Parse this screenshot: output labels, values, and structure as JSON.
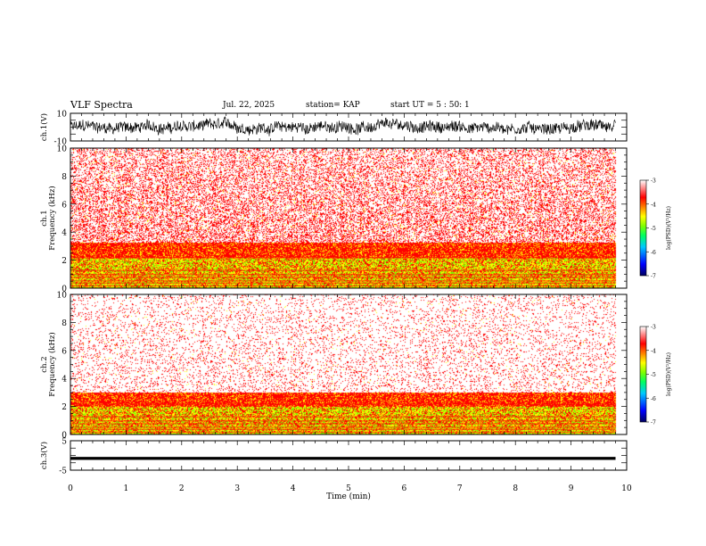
{
  "header": {
    "title": "VLF Spectra",
    "date": "Jul. 22, 2025",
    "station": "station= KAP",
    "start": "start UT =  5 : 50: 1"
  },
  "chart_data": {
    "type": "heatmap",
    "title": "VLF Spectra",
    "xlabel": "Time  (min)",
    "x_ticks": [
      "0",
      "1",
      "2",
      "3",
      "4",
      "5",
      "6",
      "7",
      "8",
      "9",
      "10"
    ],
    "xlim": [
      0,
      10
    ],
    "panels": [
      {
        "kind": "waveform",
        "ylabel": "ch.1(V)",
        "ylim": [
          -10,
          10
        ],
        "y_ticks": [
          "10",
          "-10"
        ],
        "trace_span": [
          0,
          9.8
        ]
      },
      {
        "kind": "spectrogram",
        "ylabel_top": "ch.1",
        "ylabel": "Frequency  (kHz)",
        "ylim": [
          0,
          10
        ],
        "y_ticks": [
          "0",
          "2",
          "4",
          "6",
          "8",
          "10"
        ],
        "colorbar": {
          "label": "log(PSD)(V²/Hz)",
          "range": [
            -7,
            -3
          ],
          "ticks": [
            "-3",
            "-4",
            "-5",
            "-6",
            "-7"
          ],
          "colormap": [
            "#000060",
            "#0000ff",
            "#00c8ff",
            "#00ff60",
            "#80ff00",
            "#ffff00",
            "#ff8000",
            "#ff0000",
            "#ffffff"
          ]
        },
        "bands": [
          {
            "f_range": [
              0,
              0.6
            ],
            "level": "mixed yellow/green"
          },
          {
            "f_range": [
              0.6,
              2.2
            ],
            "level": "yellow/green with red"
          },
          {
            "f_range": [
              2.2,
              3.3
            ],
            "level": "red/yellow"
          },
          {
            "f_range": [
              3.3,
              10
            ],
            "level": "red speckle on white"
          }
        ]
      },
      {
        "kind": "spectrogram",
        "ylabel_top": "ch.2",
        "ylabel": "Frequency  (kHz)",
        "ylim": [
          0,
          10
        ],
        "y_ticks": [
          "0",
          "2",
          "4",
          "6",
          "8",
          "10"
        ],
        "colorbar": {
          "label": "log(PSD)(V²/Hz)",
          "range": [
            -7,
            -3
          ],
          "ticks": [
            "-3",
            "-4",
            "-5",
            "-6",
            "-7"
          ]
        },
        "bands": [
          {
            "f_range": [
              0,
              0.6
            ],
            "level": "mixed yellow/green"
          },
          {
            "f_range": [
              0.6,
              2.0
            ],
            "level": "yellow/green with red"
          },
          {
            "f_range": [
              2.0,
              3.0
            ],
            "level": "red/yellow"
          },
          {
            "f_range": [
              3.0,
              10
            ],
            "level": "sparse red speckle on white"
          }
        ]
      },
      {
        "kind": "waveform",
        "ylabel": "ch.3(V)",
        "ylim": [
          -5,
          5
        ],
        "y_ticks": [
          "5",
          "-5"
        ],
        "trace_span": [
          0,
          9.8
        ],
        "trace_level": [
          -1.5,
          -0.5
        ]
      }
    ]
  }
}
